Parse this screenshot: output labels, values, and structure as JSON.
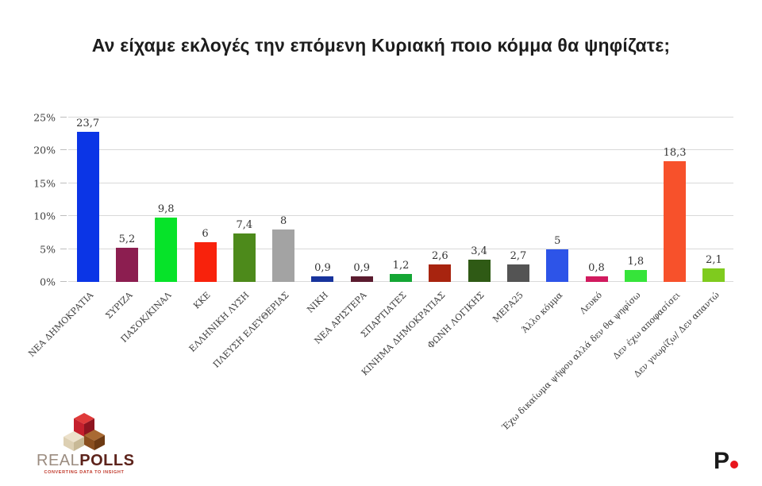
{
  "title": "Αν είχαμε εκλογές την επόμενη Κυριακή ποιο κόμμα θα ψηφίζατε;",
  "chart_data": {
    "type": "bar",
    "title": "Αν είχαμε εκλογές την επόμενη Κυριακή ποιο κόμμα θα ψηφίζατε;",
    "categories": [
      "ΝΕΑ ΔΗΜΟΚΡΑΤΙΑ",
      "ΣΥΡΙΖΑ",
      "ΠΑΣΟΚ/ΚΙΝΑΛ",
      "ΚΚΕ",
      "ΕΛΛΗΝΙΚΗ ΛΥΣΗ",
      "ΠΛΕΥΣΗ ΕΛΕΥΘΕΡΙΑΣ",
      "ΝΙΚΗ",
      "ΝΕΑ ΑΡΙΣΤΕΡΑ",
      "ΣΠΑΡΤΙΑΤΕΣ",
      "ΚΙΝΗΜΑ ΔΗΜΟΚΡΑΤΙΑΣ",
      "ΦΩΝΗ ΛΟΓΙΚΗΣ",
      "ΜΕΡΑ25",
      "Άλλο κόμμα",
      "Λευκό",
      "Έχω δικαίωμα ψήφου αλλά δεν θα ψηφίσω",
      "Δεν έχω αποφασίσει",
      "Δεν γνωρίζω/ Δεν απαντώ"
    ],
    "values": [
      23.7,
      5.2,
      9.8,
      6,
      7.4,
      8,
      0.9,
      0.9,
      1.2,
      2.6,
      3.4,
      2.7,
      5,
      0.8,
      1.8,
      18.3,
      2.1
    ],
    "value_labels": [
      "23,7",
      "5,2",
      "9,8",
      "6",
      "7,4",
      "8",
      "0,9",
      "0,9",
      "1,2",
      "2,6",
      "3,4",
      "2,7",
      "5",
      "0,8",
      "1,8",
      "18,3",
      "2,1"
    ],
    "bar_colors": [
      "#0b35e6",
      "#8c1e50",
      "#06e329",
      "#f8220c",
      "#4d8a1b",
      "#a3a3a3",
      "#17339c",
      "#5a1b2e",
      "#14a634",
      "#a8240f",
      "#2f5a15",
      "#545454",
      "#2d54e8",
      "#d11a5e",
      "#36e43a",
      "#f7512b",
      "#7fcb1e"
    ],
    "xlabel": "",
    "ylabel": "",
    "ylim": [
      0,
      25
    ],
    "yticks": [
      "0%",
      "5%",
      "10%",
      "15%",
      "20%",
      "25%"
    ],
    "ytick_values": [
      0,
      5,
      10,
      15,
      20,
      25
    ],
    "grid": true,
    "legend": false,
    "x_label_rotation_deg": 45,
    "gridline_color": "#d9d9d9"
  },
  "footer": {
    "realpolls": {
      "real": "REAL",
      "polls": "POLLS",
      "tagline": "CONVERTING DATA TO INSIGHT"
    },
    "p_logo": {
      "letter": "P"
    }
  }
}
